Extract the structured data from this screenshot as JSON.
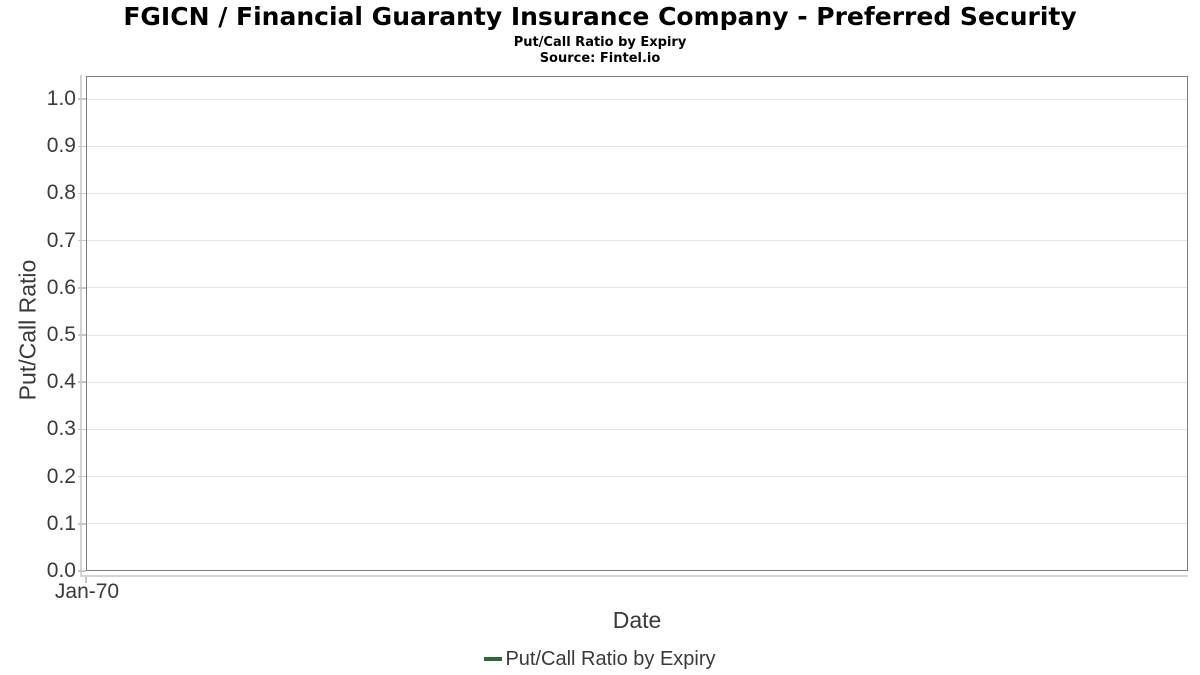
{
  "header": {
    "title": "FGICN / Financial Guaranty Insurance Company - Preferred Security",
    "subtitle": "Put/Call Ratio by Expiry",
    "source": "Source: Fintel.io"
  },
  "chart_data": {
    "type": "line",
    "title": "Put/Call Ratio by Expiry",
    "xlabel": "Date",
    "ylabel": "Put/Call Ratio",
    "ylim": [
      0.0,
      1.049
    ],
    "grid": true,
    "x_ticks": [
      "Jan-70"
    ],
    "y_ticks": [
      {
        "value": 0.0,
        "label": "0.0"
      },
      {
        "value": 0.1,
        "label": "0.1"
      },
      {
        "value": 0.2,
        "label": "0.2"
      },
      {
        "value": 0.3,
        "label": "0.3"
      },
      {
        "value": 0.4,
        "label": "0.4"
      },
      {
        "value": 0.5,
        "label": "0.5"
      },
      {
        "value": 0.6,
        "label": "0.6"
      },
      {
        "value": 0.7,
        "label": "0.7"
      },
      {
        "value": 0.8,
        "label": "0.8"
      },
      {
        "value": 0.9,
        "label": "0.9"
      },
      {
        "value": 1.0,
        "label": "1.0"
      }
    ],
    "legend": {
      "position": "bottom",
      "entries": [
        {
          "label": "Put/Call Ratio by Expiry",
          "color": "#2d6a34"
        }
      ]
    },
    "series": [
      {
        "name": "Put/Call Ratio by Expiry",
        "x": [],
        "values": []
      }
    ]
  },
  "colors": {
    "series_green": "#2d6a34",
    "plot_border": "#7e7e7e",
    "gridline": "#e5e5e5",
    "axis_light_line": "#d4d4d4",
    "tick_mark": "#c8c8c8",
    "axis_text": "#3a3a3a",
    "title_text": "#000000",
    "background": "#ffffff"
  }
}
